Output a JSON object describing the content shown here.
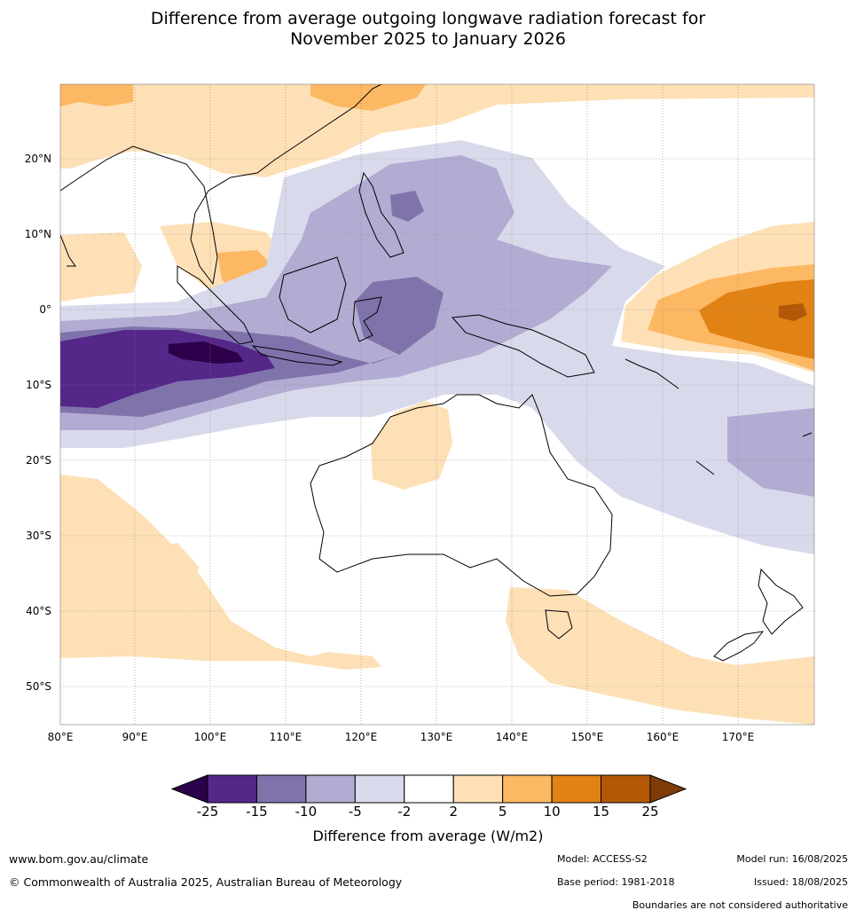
{
  "title_line1": "Difference from average outgoing longwave radiation forecast for",
  "title_line2": "November 2025 to January 2026",
  "map": {
    "lon_ticks": [
      "80°E",
      "90°E",
      "100°E",
      "110°E",
      "120°E",
      "130°E",
      "140°E",
      "150°E",
      "160°E",
      "170°E"
    ],
    "lat_ticks": [
      "20°N",
      "10°N",
      "0°",
      "10°S",
      "20°S",
      "30°S",
      "40°S",
      "50°S"
    ],
    "lon_range": [
      80,
      180
    ],
    "lat_range": [
      -55,
      30
    ],
    "grid": true,
    "anomaly_regions": [
      {
        "region": "Maritime Continent / Indian Ocean convection",
        "sign": "negative",
        "min_class": "-25"
      },
      {
        "region": "Western Pacific 160°E–180°E near equator",
        "sign": "positive",
        "max_class": "15"
      },
      {
        "region": "Southern Ocean south of Australia",
        "sign": "positive",
        "max_class": "5"
      }
    ]
  },
  "colorbar": {
    "levels": [
      "-25",
      "-15",
      "-10",
      "-5",
      "-2",
      "2",
      "5",
      "10",
      "15",
      "25"
    ],
    "colors": [
      "#2d004b",
      "#542788",
      "#8073ac",
      "#b2abd2",
      "#d8daeb",
      "#ffffff",
      "#fee0b6",
      "#fdb863",
      "#e08214",
      "#b35806",
      "#7f3b08"
    ],
    "title": "Difference from average (W/m2)"
  },
  "footer": {
    "website": "www.bom.gov.au/climate",
    "copyright": "© Commonwealth of Australia 2025, Australian Bureau of Meteorology",
    "model": "Model: ACCESS-S2",
    "base_period": "Base period: 1981-2018",
    "model_run": "Model run: 16/08/2025",
    "issued": "Issued: 18/08/2025",
    "disclaimer": "Boundaries are not considered authoritative"
  }
}
